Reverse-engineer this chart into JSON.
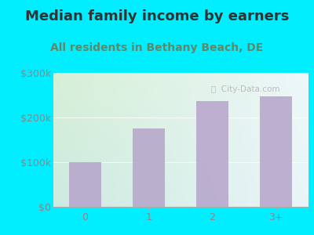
{
  "title": "Median family income by earners",
  "subtitle": "All residents in Bethany Beach, DE",
  "categories": [
    "0",
    "1",
    "2",
    "3+"
  ],
  "values": [
    100000,
    175000,
    237000,
    248000
  ],
  "bar_color": "#b8a8cc",
  "background_outer": "#00eeff",
  "title_color": "#333333",
  "subtitle_color": "#5a8a6a",
  "tick_color": "#888888",
  "ylim": [
    0,
    300000
  ],
  "yticks": [
    0,
    100000,
    200000,
    300000
  ],
  "ytick_labels": [
    "$0",
    "$100k",
    "$200k",
    "$300k"
  ],
  "watermark": "City-Data.com",
  "title_fontsize": 13,
  "subtitle_fontsize": 10,
  "tick_fontsize": 9,
  "grad_top_left": "#d8f0d8",
  "grad_top_right": "#eef8f8",
  "grad_bottom_left": "#c0e8e0",
  "grad_bottom_right": "#e8f4f8"
}
